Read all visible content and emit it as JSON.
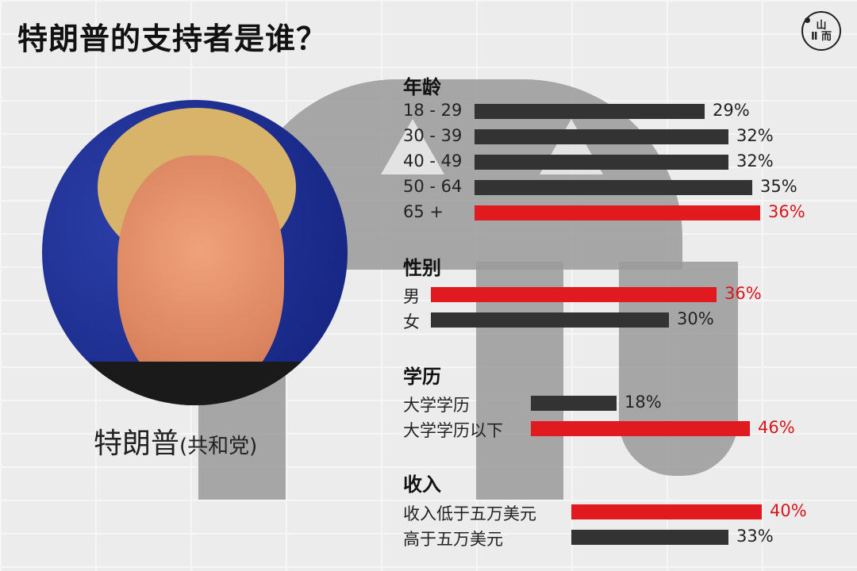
{
  "title": "特朗普的支持者是谁？",
  "logo": {
    "top": "山",
    "bottom": "Ⅱ 而"
  },
  "caption": {
    "name": "特朗普",
    "party": "(共和党)"
  },
  "colors": {
    "bar": "#333333",
    "highlight": "#e01a1f",
    "highlight_text": "#d6161b",
    "text": "#222222"
  },
  "chart_data": {
    "type": "bar",
    "orientation": "horizontal",
    "unit": "%",
    "groups": [
      {
        "title": "年龄",
        "categories": [
          "18 - 29",
          "30 - 39",
          "40 - 49",
          "50 - 64",
          "65 +"
        ],
        "values": [
          29,
          32,
          32,
          35,
          36
        ],
        "labels": [
          "29%",
          "32%",
          "32%",
          "35%",
          "36%"
        ],
        "highlight": [
          false,
          false,
          false,
          false,
          true
        ]
      },
      {
        "title": "性别",
        "categories": [
          "男",
          "女"
        ],
        "values": [
          36,
          30
        ],
        "labels": [
          "36%",
          "30%"
        ],
        "highlight": [
          true,
          false
        ]
      },
      {
        "title": "学历",
        "categories": [
          "大学学历",
          "大学学历以下"
        ],
        "values": [
          18,
          46
        ],
        "labels": [
          "18%",
          "46%"
        ],
        "highlight": [
          false,
          true
        ]
      },
      {
        "title": "收入",
        "categories": [
          "收入低于五万美元",
          "高于五万美元"
        ],
        "values": [
          40,
          33
        ],
        "labels": [
          "40%",
          "33%"
        ],
        "highlight": [
          true,
          false
        ]
      }
    ]
  }
}
